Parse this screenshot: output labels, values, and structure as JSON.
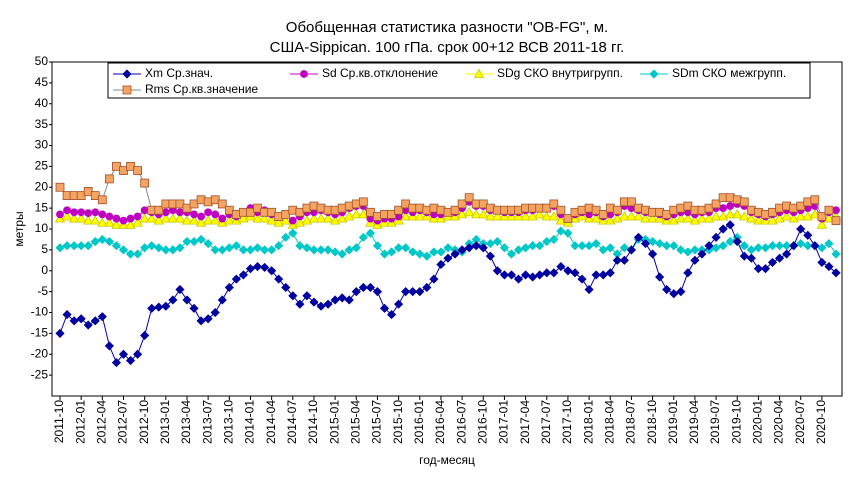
{
  "chart_data": {
    "type": "line",
    "title": "Обобщенная статистика разности \"OB-FG\", м.",
    "subtitle": "США-Sippican. 100 гПа. срок 00+12 ВСВ 2011-18 гг.",
    "x_label": "год-месяц",
    "y_label": "метры",
    "categories": [
      "2011-10",
      null,
      null,
      "2012-01",
      null,
      null,
      "2012-04",
      null,
      null,
      "2012-07",
      null,
      null,
      "2012-10",
      null,
      null,
      "2013-01",
      null,
      null,
      "2013-04",
      null,
      null,
      "2013-07",
      null,
      null,
      "2013-10",
      null,
      null,
      "2014-01",
      null,
      null,
      "2014-04",
      null,
      null,
      "2014-07",
      null,
      null,
      "2014-10",
      null,
      null,
      "2015-01",
      null,
      null,
      "2015-04",
      null,
      null,
      "2015-07",
      null,
      null,
      "2015-10",
      null,
      null,
      "2016-01",
      null,
      null,
      "2016-04",
      null,
      null,
      "2016-07",
      null,
      null,
      "2016-10",
      null,
      null,
      "2017-01",
      null,
      null,
      "2017-04",
      null,
      null,
      "2017-07",
      null,
      null,
      "2017-10",
      null,
      null,
      "2018-01",
      null,
      null,
      "2018-04",
      null,
      null,
      "2018-07",
      null,
      null,
      "2018-10",
      null,
      null,
      "2019-01",
      null,
      null,
      "2019-04",
      null,
      null,
      "2019-07",
      null,
      null,
      "2019-10",
      null,
      null,
      "2020-01",
      null,
      null,
      "2020-04",
      null,
      null,
      "2020-07",
      null,
      null,
      "2020-10",
      null,
      null
    ],
    "ylim": [
      -30,
      50
    ],
    "yticks": [
      -25,
      -20,
      -15,
      -10,
      -5,
      0,
      5,
      10,
      15,
      20,
      25,
      30,
      35,
      40,
      45,
      50
    ],
    "series": [
      {
        "name": "SDm СКО межгрупп.",
        "color": "#00c8c8",
        "marker": "diamond",
        "values": [
          5.5,
          6,
          6,
          6,
          6,
          7,
          7.5,
          7,
          6,
          5,
          4,
          4,
          5.5,
          6,
          5.5,
          5,
          5,
          5.5,
          7,
          7,
          7.5,
          6.5,
          5,
          5,
          5.5,
          6,
          5,
          5,
          5.5,
          5,
          5,
          6,
          8,
          9,
          6,
          5.5,
          5,
          5,
          5,
          4.5,
          4,
          5,
          5.5,
          8,
          9,
          6,
          4,
          4.5,
          5.5,
          5.5,
          4.5,
          4,
          3.5,
          4.5,
          4.5,
          5.5,
          5,
          4.5,
          6.5,
          7.5,
          6.5,
          6.5,
          7,
          5.5,
          4,
          5,
          5.5,
          6,
          6,
          7,
          7.5,
          9.5,
          9,
          6,
          6,
          6,
          6.5,
          5,
          5.5,
          4,
          5.5,
          5,
          7.5,
          7.5,
          7,
          6.5,
          6,
          6,
          5,
          4.5,
          5,
          5,
          5,
          5.5,
          6,
          7,
          8,
          6,
          5,
          5.5,
          5.5,
          6,
          6,
          6,
          6,
          6.5,
          6,
          6,
          5.5,
          6.5,
          4
        ]
      },
      {
        "name": "SDg СКО внутригрупп.",
        "color": "#ffff00",
        "marker": "triangle",
        "values": [
          12.5,
          13,
          12.5,
          12.5,
          12,
          12,
          11.5,
          11.5,
          11,
          11,
          11,
          11.5,
          12.5,
          12.5,
          12,
          12.5,
          12.5,
          12.5,
          12,
          12,
          11.5,
          12,
          12,
          11.5,
          12,
          12,
          12.5,
          13,
          12.5,
          12.5,
          12,
          11.5,
          12,
          11,
          11.5,
          12,
          12.5,
          12.5,
          12.5,
          12,
          12.5,
          13,
          13.5,
          13.5,
          11.5,
          11,
          11.5,
          11.5,
          12,
          13,
          13,
          13,
          13,
          12.5,
          12.5,
          13,
          13,
          13.5,
          14,
          13.5,
          13.5,
          13,
          13,
          13,
          13,
          13,
          13,
          13,
          13.5,
          13,
          13,
          12,
          11.5,
          12.5,
          13,
          12.5,
          12.5,
          12,
          12,
          12.5,
          13,
          13,
          13,
          12.5,
          12.5,
          12.5,
          12,
          12,
          12.5,
          12.5,
          12,
          12.5,
          12.5,
          13,
          13,
          13.5,
          13.5,
          13,
          12.5,
          12,
          12,
          12,
          12.5,
          13,
          12.5,
          13,
          13,
          13.5,
          11,
          12.5,
          13
        ]
      },
      {
        "name": "Sd Ср.кв.отклонение",
        "color": "#c000c0",
        "marker": "circle",
        "values": [
          13.5,
          14.5,
          14,
          14,
          13.8,
          14,
          13.5,
          13,
          12.5,
          12,
          12.5,
          13,
          14.5,
          14,
          13.5,
          14,
          14.5,
          14,
          14,
          13.5,
          13,
          14,
          13.5,
          12.5,
          13.5,
          13,
          14,
          15,
          14,
          14.5,
          13.5,
          13,
          13.5,
          12,
          13,
          14,
          14,
          14.5,
          14,
          13.5,
          14,
          15,
          15.5,
          15.5,
          12.5,
          12,
          12.5,
          12.5,
          13,
          14.5,
          14,
          14.5,
          14,
          13.5,
          13.5,
          14,
          14,
          15,
          16.5,
          15.5,
          15.5,
          14.5,
          14.5,
          14,
          14,
          14,
          14.5,
          14.5,
          15,
          15,
          15.5,
          13.5,
          12.5,
          13.5,
          14,
          13.5,
          14,
          13,
          13.5,
          14,
          15.5,
          15,
          14.5,
          14,
          14,
          13.5,
          13,
          13.5,
          14,
          14,
          13.5,
          14,
          14,
          15,
          15,
          15.5,
          16,
          15.5,
          14,
          13.5,
          13,
          13.5,
          14,
          14.5,
          14,
          14.5,
          15,
          15.5,
          12.5,
          14,
          14.5
        ]
      },
      {
        "name": "Xm Ср.знач.",
        "color": "#0000a0",
        "marker": "diamond",
        "values": [
          -15,
          -10.5,
          -12,
          -11.5,
          -13,
          -12,
          -11,
          -18,
          -22,
          -20,
          -21.5,
          -20,
          -15.5,
          -9,
          -8.7,
          -8.5,
          -7,
          -4.5,
          -7,
          -9,
          -12,
          -11.5,
          -10,
          -7,
          -4,
          -2,
          -1,
          0.5,
          1,
          0.8,
          0,
          -2,
          -4,
          -6,
          -8,
          -6,
          -7.5,
          -8.5,
          -8,
          -7,
          -6.5,
          -7,
          -5,
          -4,
          -4,
          -5,
          -9,
          -10.5,
          -8,
          -5,
          -5,
          -5,
          -4,
          -2,
          1.5,
          3,
          4,
          5,
          5.5,
          6,
          5.5,
          3.5,
          0,
          -1,
          -1,
          -2,
          -1,
          -1.5,
          -1,
          -0.5,
          -0.5,
          1,
          0,
          -0.5,
          -2,
          -4.5,
          -1,
          -1,
          -0.5,
          2.5,
          2.5,
          5,
          8,
          6.5,
          4,
          -1.5,
          -4.5,
          -5.5,
          -5,
          -0.5,
          2.5,
          4,
          6,
          8,
          10,
          11,
          7,
          3.5,
          3,
          0.5,
          0.5,
          2,
          3,
          4,
          6,
          10,
          8.5,
          6,
          2,
          1,
          -0.5
        ]
      },
      {
        "name": "Rms Ср.кв.значение",
        "color": "#f4a460",
        "marker": "square",
        "values": [
          20,
          18,
          18,
          18,
          19,
          18,
          17,
          22,
          25,
          24,
          25,
          24,
          21,
          14.5,
          14.5,
          16,
          16,
          16,
          15,
          16,
          17,
          16.5,
          17,
          16,
          14.5,
          13.5,
          14,
          14,
          15,
          14,
          14,
          13,
          13.5,
          14.5,
          14,
          15,
          15.5,
          15,
          14.5,
          14.5,
          15,
          15.5,
          16,
          16.5,
          14,
          13,
          13.5,
          13.5,
          14.5,
          16,
          15,
          15,
          14.5,
          15,
          14.5,
          14,
          14.5,
          16,
          17.5,
          16,
          16,
          15,
          14.5,
          14.5,
          14.5,
          14.5,
          15,
          15,
          15,
          15,
          16,
          14.5,
          12.5,
          14,
          14.5,
          15,
          14.5,
          13.5,
          15,
          14.5,
          16.5,
          16.5,
          15,
          14.5,
          14,
          14,
          13.5,
          14.5,
          15,
          15.5,
          14.5,
          14.5,
          15,
          16,
          17.5,
          17.5,
          17,
          16.5,
          14.5,
          14,
          13.5,
          14,
          15,
          15.5,
          15,
          15.5,
          16.5,
          17,
          13,
          14.5,
          12
        ]
      }
    ],
    "legend_order": [
      3,
      2,
      1,
      0,
      4
    ]
  }
}
